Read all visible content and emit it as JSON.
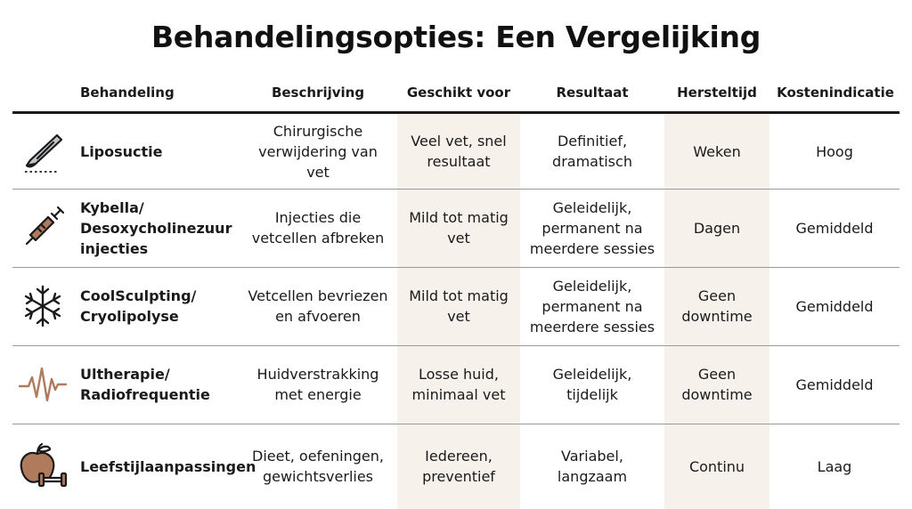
{
  "title": "Behandelingsopties: Een Vergelijking",
  "headers": {
    "behandeling": "Behandeling",
    "beschrijving": "Beschrijving",
    "geschikt_voor": "Geschikt voor",
    "resultaat": "Resultaat",
    "hersteltijd": "Hersteltijd",
    "kostenindicatie": "Kostenindicatie"
  },
  "colors": {
    "shade": "#f6f1ea",
    "icon_dark": "#1a1a1a",
    "icon_brown": "#b07a5c"
  },
  "rows": [
    {
      "icon": "scalpel-icon",
      "behandeling": "Liposuctie",
      "beschrijving": "Chirurgische\nverwijdering van\nvet",
      "geschikt_voor": "Veel vet, snel\nresultaat",
      "resultaat": "Definitief,\ndramatisch",
      "hersteltijd": "Weken",
      "kosten": "Hoog"
    },
    {
      "icon": "syringe-icon",
      "behandeling": "Kybella/\nDesoxycholinezuur\ninjecties",
      "beschrijving": "Injecties die\nvetcellen afbreken",
      "geschikt_voor": "Mild tot matig\nvet",
      "resultaat": "Geleidelijk,\npermanent na\nmeerdere sessies",
      "hersteltijd": "Dagen",
      "kosten": "Gemiddeld"
    },
    {
      "icon": "snowflake-icon",
      "behandeling": "CoolSculpting/\nCryolipolyse",
      "beschrijving": "Vetcellen bevriezen\nen afvoeren",
      "geschikt_voor": "Mild tot matig\nvet",
      "resultaat": "Geleidelijk,\npermanent na\nmeerdere sessies",
      "hersteltijd": "Geen\ndowntime",
      "kosten": "Gemiddeld"
    },
    {
      "icon": "pulse-wave-icon",
      "behandeling": "Ultherapie/\nRadiofrequentie",
      "beschrijving": "Huidverstrakking\nmet energie",
      "geschikt_voor": "Losse huid,\nminimaal vet",
      "resultaat": "Geleidelijk,\ntijdelijk",
      "hersteltijd": "Geen\ndowntime",
      "kosten": "Gemiddeld"
    },
    {
      "icon": "apple-dumbbell-icon",
      "behandeling": "Leefstijlaanpassingen",
      "beschrijving": "Dieet, oefeningen,\ngewichtsverlies",
      "geschikt_voor": "Iedereen,\npreventief",
      "resultaat": "Variabel,\nlangzaam",
      "hersteltijd": "Continu",
      "kosten": "Laag"
    }
  ]
}
